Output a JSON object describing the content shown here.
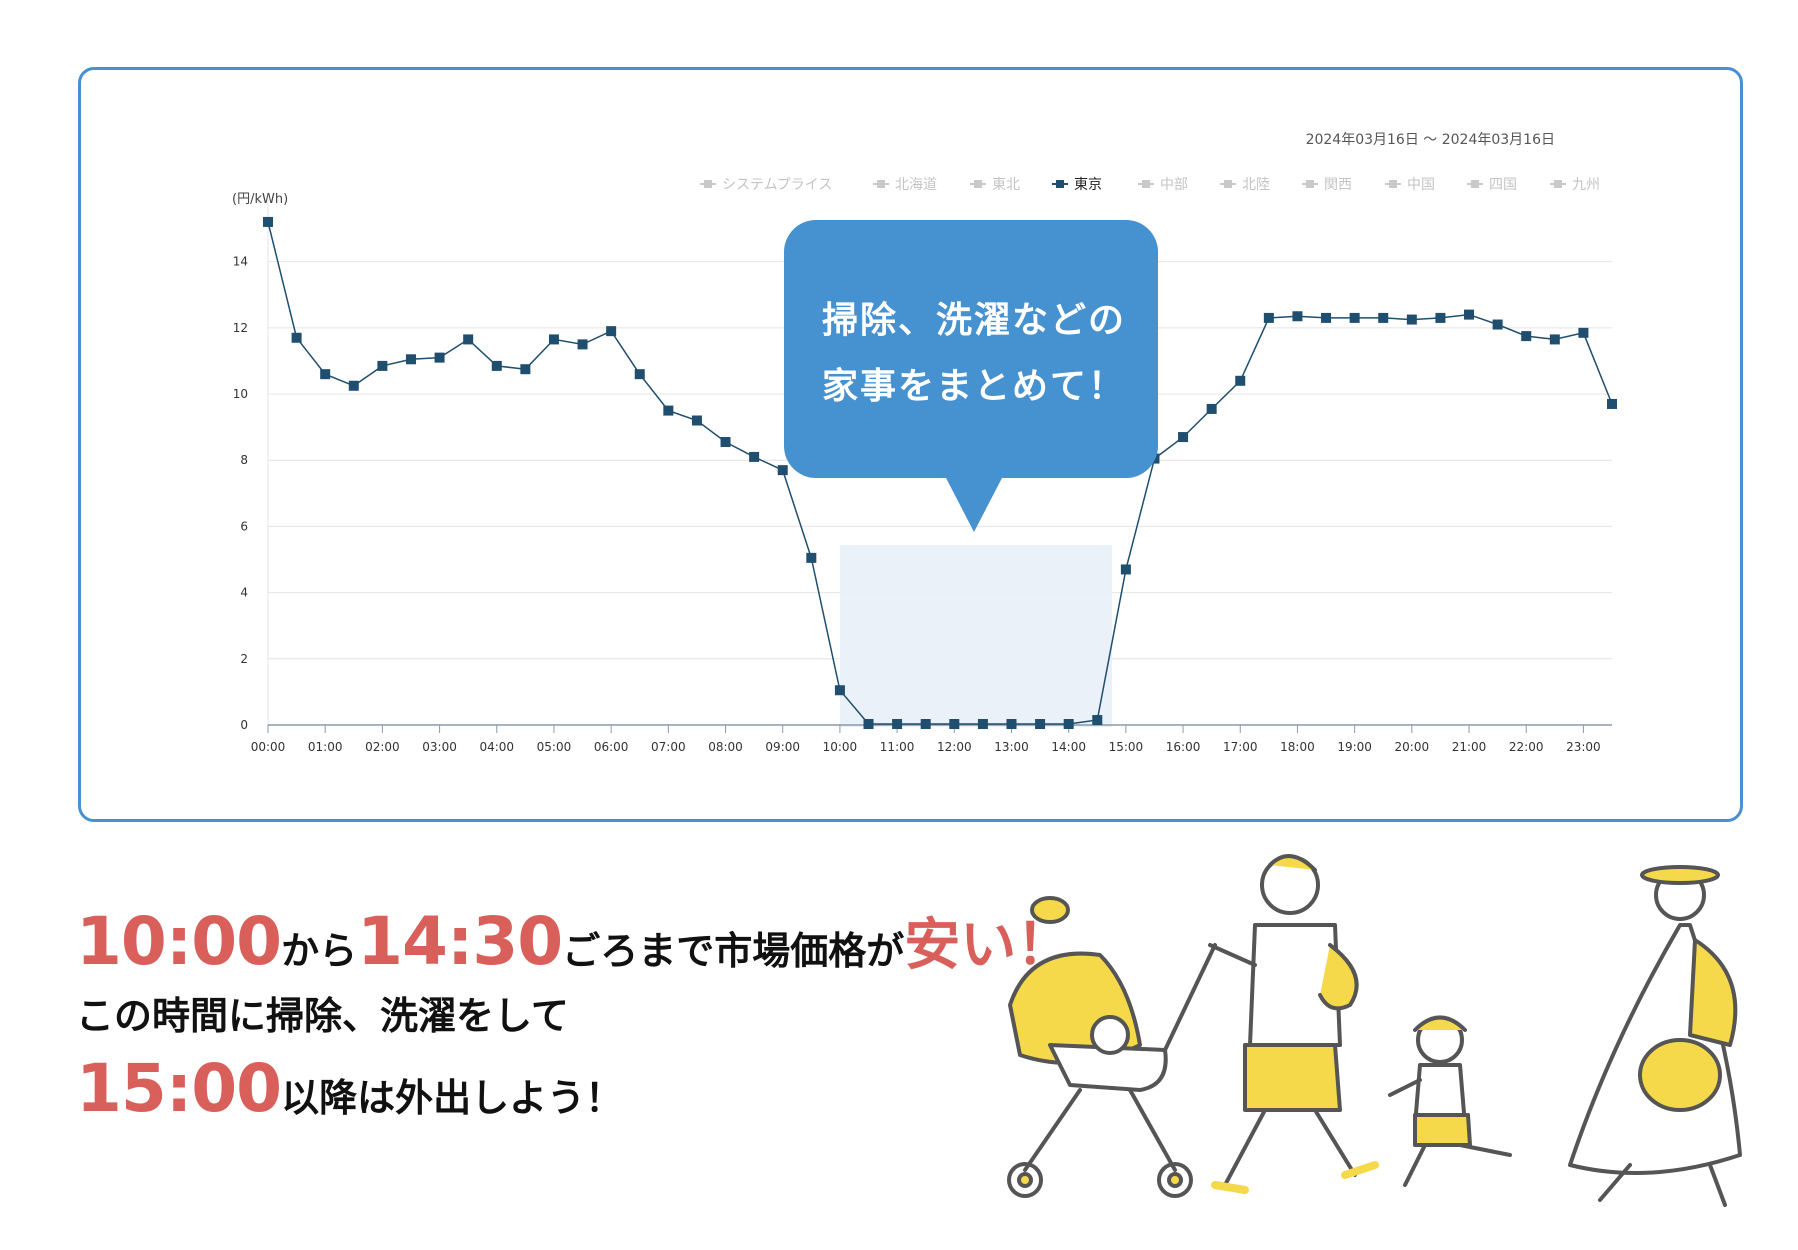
{
  "chart_data": {
    "type": "line",
    "date_range": "2024年03月16日 ～ 2024年03月16日",
    "unit_label": "(円/kWh)",
    "ylim": [
      0,
      15.5
    ],
    "y_ticks": [
      0,
      2,
      4,
      6,
      8,
      10,
      12,
      14
    ],
    "x_tick_labels": [
      "00:00",
      "01:00",
      "02:00",
      "03:00",
      "04:00",
      "05:00",
      "06:00",
      "07:00",
      "08:00",
      "09:00",
      "10:00",
      "11:00",
      "12:00",
      "13:00",
      "14:00",
      "15:00",
      "16:00",
      "17:00",
      "18:00",
      "19:00",
      "20:00",
      "21:00",
      "22:00",
      "23:00"
    ],
    "legend": [
      {
        "name": "システムプライス",
        "active": false
      },
      {
        "name": "北海道",
        "active": false
      },
      {
        "name": "東北",
        "active": false
      },
      {
        "name": "東京",
        "active": true
      },
      {
        "name": "中部",
        "active": false
      },
      {
        "name": "北陸",
        "active": false
      },
      {
        "name": "関西",
        "active": false
      },
      {
        "name": "中国",
        "active": false
      },
      {
        "name": "四国",
        "active": false
      },
      {
        "name": "九州",
        "active": false
      }
    ],
    "series": [
      {
        "name": "東京",
        "color": "#1f4e6e",
        "x": [
          "00:00",
          "00:30",
          "01:00",
          "01:30",
          "02:00",
          "02:30",
          "03:00",
          "03:30",
          "04:00",
          "04:30",
          "05:00",
          "05:30",
          "06:00",
          "06:30",
          "07:00",
          "07:30",
          "08:00",
          "08:30",
          "09:00",
          "09:30",
          "10:00",
          "10:30",
          "11:00",
          "11:30",
          "12:00",
          "12:30",
          "13:00",
          "13:30",
          "14:00",
          "14:30",
          "15:00",
          "15:30",
          "16:00",
          "16:30",
          "17:00",
          "17:30",
          "18:00",
          "18:30",
          "19:00",
          "19:30",
          "20:00",
          "20:30",
          "21:00",
          "21:30",
          "22:00",
          "22:30",
          "23:00",
          "23:30"
        ],
        "values": [
          15.2,
          11.7,
          10.6,
          10.25,
          10.85,
          11.05,
          11.1,
          11.65,
          10.85,
          10.75,
          11.65,
          11.5,
          11.9,
          10.6,
          9.5,
          9.2,
          8.55,
          8.1,
          7.7,
          5.05,
          1.05,
          0.03,
          0.03,
          0.03,
          0.03,
          0.03,
          0.03,
          0.03,
          0.03,
          0.15,
          4.7,
          8.05,
          8.7,
          9.55,
          10.4,
          12.3,
          12.35,
          12.3,
          12.3,
          12.3,
          12.25,
          12.3,
          12.4,
          12.1,
          11.75,
          11.65,
          11.85,
          9.7
        ]
      }
    ],
    "highlight_range": [
      "10:00",
      "14:30"
    ],
    "callout": {
      "line1": "掃除、洗濯などの",
      "line2": "家事をまとめて！"
    }
  },
  "colors": {
    "accent": "#d9605a",
    "callout": "#4691d0",
    "border": "#4a8fd0",
    "series": "#1f4e6e"
  },
  "headline": {
    "l1_t1": "10:00",
    "l1_s1": "から",
    "l1_t2": "14:30",
    "l1_s2": "ごろまで市場価格が",
    "l1_s3": "安い！",
    "l2": "この時間に掃除、洗濯をして",
    "l3_t": "15:00",
    "l3_s": "以降は外出しよう！"
  },
  "illustration": "family-walking-illustration"
}
